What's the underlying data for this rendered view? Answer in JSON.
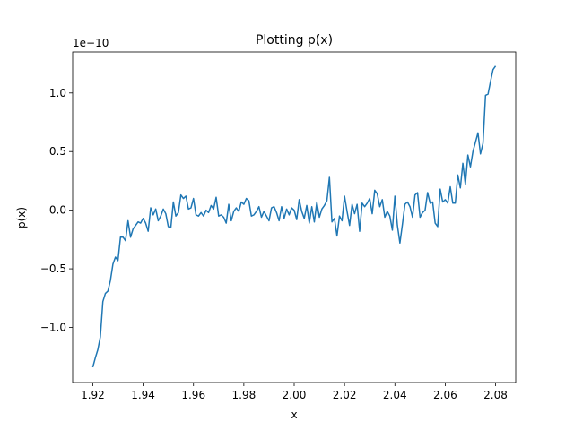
{
  "chart_data": {
    "type": "line",
    "title": "Plotting p(x)",
    "xlabel": "x",
    "ylabel": "p(x)",
    "y_offset_label": "1e−10",
    "x": [
      1.92,
      1.921,
      1.922,
      1.923,
      1.924,
      1.925,
      1.926,
      1.927,
      1.928,
      1.929,
      1.93,
      1.931,
      1.932,
      1.933,
      1.934,
      1.935,
      1.936,
      1.937,
      1.938,
      1.939,
      1.94,
      1.941,
      1.942,
      1.943,
      1.944,
      1.945,
      1.946,
      1.947,
      1.948,
      1.949,
      1.95,
      1.951,
      1.952,
      1.953,
      1.954,
      1.955,
      1.956,
      1.957,
      1.958,
      1.959,
      1.96,
      1.961,
      1.962,
      1.963,
      1.964,
      1.965,
      1.966,
      1.967,
      1.968,
      1.969,
      1.97,
      1.971,
      1.972,
      1.973,
      1.974,
      1.975,
      1.976,
      1.977,
      1.978,
      1.979,
      1.98,
      1.981,
      1.982,
      1.983,
      1.984,
      1.985,
      1.986,
      1.987,
      1.988,
      1.989,
      1.99,
      1.991,
      1.992,
      1.993,
      1.994,
      1.995,
      1.996,
      1.997,
      1.998,
      1.999,
      2.0,
      2.001,
      2.002,
      2.003,
      2.004,
      2.005,
      2.006,
      2.007,
      2.008,
      2.009,
      2.01,
      2.011,
      2.012,
      2.013,
      2.014,
      2.015,
      2.016,
      2.017,
      2.018,
      2.019,
      2.02,
      2.021,
      2.022,
      2.023,
      2.024,
      2.025,
      2.026,
      2.027,
      2.028,
      2.029,
      2.03,
      2.031,
      2.032,
      2.033,
      2.034,
      2.035,
      2.036,
      2.037,
      2.038,
      2.039,
      2.04,
      2.041,
      2.042,
      2.043,
      2.044,
      2.045,
      2.046,
      2.047,
      2.048,
      2.049,
      2.05,
      2.051,
      2.052,
      2.053,
      2.054,
      2.055,
      2.056,
      2.057,
      2.058,
      2.059,
      2.06,
      2.061,
      2.062,
      2.063,
      2.064,
      2.065,
      2.066,
      2.067,
      2.068,
      2.069,
      2.07,
      2.071,
      2.072,
      2.073,
      2.074,
      2.075,
      2.076,
      2.077,
      2.078,
      2.079,
      2.08
    ],
    "series": [
      {
        "name": "p(x)",
        "color": "#1f77b4",
        "values": [
          -1.34,
          -1.26,
          -1.19,
          -1.08,
          -0.78,
          -0.71,
          -0.69,
          -0.6,
          -0.46,
          -0.4,
          -0.43,
          -0.23,
          -0.23,
          -0.26,
          -0.09,
          -0.23,
          -0.16,
          -0.13,
          -0.1,
          -0.11,
          -0.07,
          -0.11,
          -0.18,
          0.02,
          -0.04,
          0.01,
          -0.09,
          -0.05,
          0.01,
          -0.03,
          -0.14,
          -0.15,
          0.07,
          -0.05,
          -0.02,
          0.13,
          0.1,
          0.12,
          0.01,
          0.02,
          0.1,
          -0.04,
          -0.05,
          -0.02,
          -0.05,
          0.0,
          -0.02,
          0.04,
          0.01,
          0.11,
          -0.05,
          -0.04,
          -0.06,
          -0.11,
          0.05,
          -0.09,
          -0.01,
          0.02,
          -0.01,
          0.07,
          0.05,
          0.1,
          0.08,
          -0.05,
          -0.04,
          -0.01,
          0.03,
          -0.06,
          -0.01,
          -0.05,
          -0.09,
          0.02,
          0.03,
          -0.02,
          -0.09,
          0.03,
          -0.07,
          0.01,
          -0.04,
          0.02,
          0.0,
          -0.08,
          0.09,
          -0.01,
          -0.07,
          0.04,
          -0.11,
          0.03,
          -0.1,
          0.07,
          -0.06,
          0.01,
          0.04,
          0.08,
          0.28,
          -0.1,
          -0.07,
          -0.22,
          -0.05,
          -0.09,
          0.12,
          -0.01,
          -0.13,
          0.05,
          -0.03,
          0.05,
          -0.18,
          0.06,
          0.03,
          0.06,
          0.1,
          -0.03,
          0.17,
          0.14,
          0.03,
          0.09,
          -0.06,
          -0.01,
          -0.05,
          -0.17,
          0.12,
          -0.13,
          -0.28,
          -0.12,
          0.05,
          0.07,
          0.03,
          -0.06,
          0.13,
          0.15,
          -0.06,
          -0.02,
          0.0,
          0.15,
          0.06,
          0.07,
          -0.11,
          -0.14,
          0.18,
          0.07,
          0.09,
          0.06,
          0.2,
          0.06,
          0.06,
          0.3,
          0.19,
          0.4,
          0.22,
          0.47,
          0.37,
          0.5,
          0.58,
          0.66,
          0.48,
          0.57,
          0.98,
          0.99,
          1.1,
          1.2,
          1.23
        ]
      }
    ],
    "xlim": [
      1.912,
      2.088
    ],
    "xticks": [
      1.92,
      1.94,
      1.96,
      1.98,
      {
        "value": 2.0,
        "label": "2.00"
      },
      2.02,
      2.04,
      2.06,
      2.08
    ],
    "ylim": [
      -1.47,
      1.35
    ],
    "yticks": [
      {
        "value": -1.0,
        "label": "−1.0"
      },
      {
        "value": -0.5,
        "label": "−0.5"
      },
      {
        "value": 0.0,
        "label": "0.0"
      },
      0.5,
      {
        "value": 1.0,
        "label": "1.0"
      }
    ],
    "grid": false
  }
}
